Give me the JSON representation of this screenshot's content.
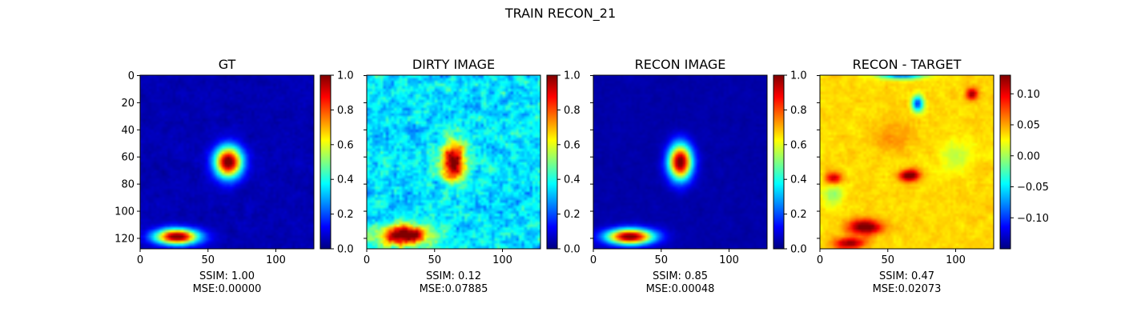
{
  "suptitle": "TRAIN RECON_21",
  "colormap": "jet",
  "chart_data": [
    {
      "type": "heatmap",
      "title": "GT",
      "xlabel_lines": [
        "SSIM: 1.00",
        "MSE:0.00000"
      ],
      "xlim": [
        0,
        128
      ],
      "ylim": [
        128,
        0
      ],
      "x_ticks": [
        0,
        50,
        100
      ],
      "y_ticks": [
        0,
        20,
        40,
        60,
        80,
        100,
        120
      ],
      "show_y_ticklabels": true,
      "colorbar": {
        "min": 0.0,
        "max": 1.0,
        "ticks": [
          "0.0",
          "0.2",
          "0.4",
          "0.6",
          "0.8",
          "1.0"
        ],
        "tick_values": [
          0,
          0.2,
          0.4,
          0.6,
          0.8,
          1.0
        ]
      },
      "sources": [
        {
          "x": 65,
          "y": 64,
          "amplitude": 1.0,
          "width_x": 7,
          "width_y": 8
        },
        {
          "x": 27,
          "y": 119,
          "amplitude": 1.0,
          "width_x": 11,
          "width_y": 4
        }
      ],
      "background": 0.05,
      "noise": 0.03
    },
    {
      "type": "heatmap",
      "title": "DIRTY IMAGE",
      "xlabel_lines": [
        "SSIM: 0.12",
        "MSE:0.07885"
      ],
      "xlim": [
        0,
        128
      ],
      "ylim": [
        128,
        0
      ],
      "x_ticks": [
        0,
        50,
        100
      ],
      "y_ticks": [
        0,
        20,
        40,
        60,
        80,
        100,
        120
      ],
      "show_y_ticklabels": false,
      "colorbar": {
        "min": 0.0,
        "max": 1.0,
        "ticks": [
          "0.0",
          "0.2",
          "0.4",
          "0.6",
          "0.8",
          "1.0"
        ],
        "tick_values": [
          0,
          0.2,
          0.4,
          0.6,
          0.8,
          1.0
        ]
      },
      "sources": [
        {
          "x": 64,
          "y": 64,
          "amplitude": 0.75,
          "width_x": 6,
          "width_y": 10
        },
        {
          "x": 27,
          "y": 118,
          "amplitude": 0.75,
          "width_x": 13,
          "width_y": 5
        }
      ],
      "background": 0.35,
      "noise": 0.16
    },
    {
      "type": "heatmap",
      "title": "RECON IMAGE",
      "xlabel_lines": [
        "SSIM: 0.85",
        "MSE:0.00048"
      ],
      "xlim": [
        0,
        128
      ],
      "ylim": [
        128,
        0
      ],
      "x_ticks": [
        0,
        50,
        100
      ],
      "y_ticks": [
        0,
        20,
        40,
        60,
        80,
        100,
        120
      ],
      "show_y_ticklabels": false,
      "colorbar": {
        "min": 0.0,
        "max": 1.0,
        "ticks": [
          "0.0",
          "0.2",
          "0.4",
          "0.6",
          "0.8",
          "1.0"
        ],
        "tick_values": [
          0,
          0.2,
          0.4,
          0.6,
          0.8,
          1.0
        ]
      },
      "sources": [
        {
          "x": 64,
          "y": 64,
          "amplitude": 1.0,
          "width_x": 6,
          "width_y": 9
        },
        {
          "x": 27,
          "y": 119,
          "amplitude": 1.0,
          "width_x": 12,
          "width_y": 4
        }
      ],
      "background": 0.04,
      "noise": 0.02
    },
    {
      "type": "heatmap",
      "title": "RECON - TARGET",
      "xlabel_lines": [
        "SSIM: 0.47",
        "MSE:0.02073"
      ],
      "xlim": [
        0,
        128
      ],
      "ylim": [
        128,
        0
      ],
      "x_ticks": [
        0,
        50,
        100
      ],
      "y_ticks": [
        0,
        20,
        40,
        60,
        80,
        100,
        120
      ],
      "show_y_ticklabels": false,
      "colorbar": {
        "min": -0.15,
        "max": 0.13,
        "ticks": [
          "−0.10",
          "−0.05",
          "0.00",
          "0.05",
          "0.10"
        ],
        "tick_values": [
          -0.1,
          -0.05,
          0.0,
          0.05,
          0.1
        ]
      },
      "sources": [
        {
          "x": 72,
          "y": 21,
          "amplitude": -0.14,
          "width_x": 3,
          "width_y": 4
        },
        {
          "x": 112,
          "y": 14,
          "amplitude": 0.09,
          "width_x": 3,
          "width_y": 3
        },
        {
          "x": 66,
          "y": 74,
          "amplitude": 0.11,
          "width_x": 5,
          "width_y": 3
        },
        {
          "x": 33,
          "y": 112,
          "amplitude": 0.11,
          "width_x": 9,
          "width_y": 4
        },
        {
          "x": 22,
          "y": 124,
          "amplitude": 0.09,
          "width_x": 8,
          "width_y": 3
        },
        {
          "x": 10,
          "y": 76,
          "amplitude": 0.08,
          "width_x": 4,
          "width_y": 3
        },
        {
          "x": 60,
          "y": 0,
          "amplitude": -0.12,
          "width_x": 12,
          "width_y": 2
        },
        {
          "x": 10,
          "y": 88,
          "amplitude": -0.04,
          "width_x": 5,
          "width_y": 6
        },
        {
          "x": 100,
          "y": 60,
          "amplitude": -0.03,
          "width_x": 8,
          "width_y": 8
        },
        {
          "x": 55,
          "y": 45,
          "amplitude": 0.02,
          "width_x": 10,
          "width_y": 8
        }
      ],
      "background": 0.0,
      "noise": 0.012
    }
  ]
}
